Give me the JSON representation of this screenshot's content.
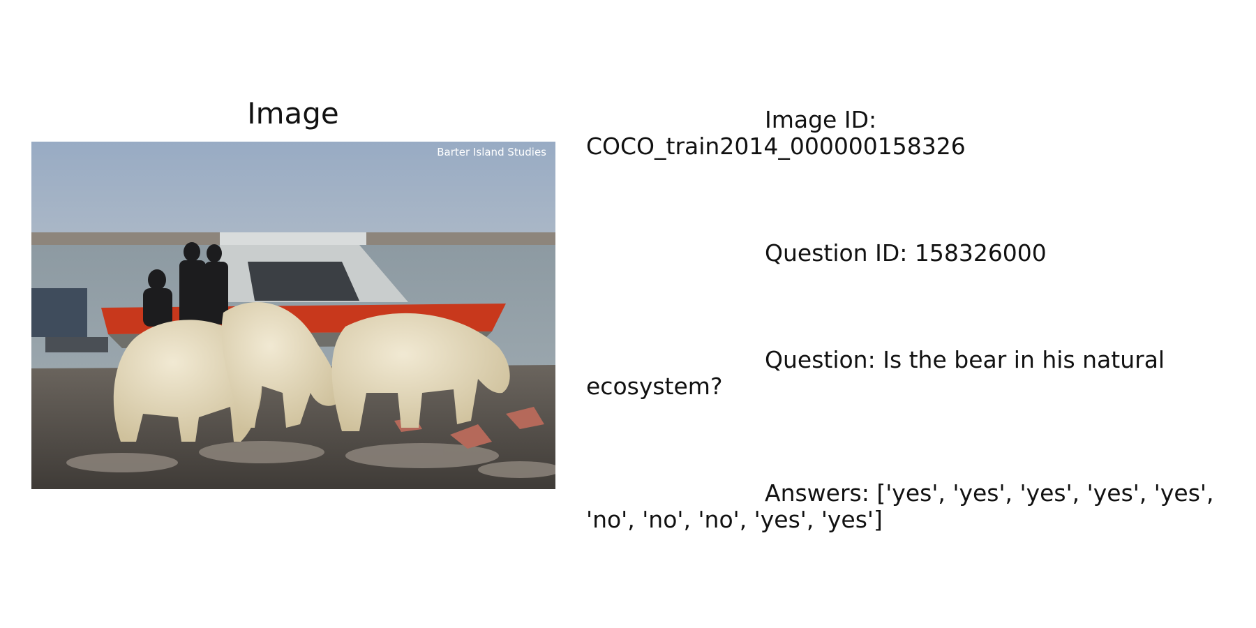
{
  "panel": {
    "image_title": "Image",
    "photo": {
      "subject": "three polar bears feeding on a rocky shore with a boat and people behind",
      "watermark": "Barter Island Studies"
    }
  },
  "info": {
    "image_id": "Image ID: COCO_train2014_000000158326",
    "question_id": "Question ID: 158326000",
    "question": "Question: Is the bear in his natural ecosystem?",
    "answers": "Answers: ['yes', 'yes', 'yes', 'yes', 'yes', 'no', 'no', 'no', 'yes', 'yes']"
  },
  "colors": {
    "sky": "#9fb2c6",
    "water": "#8f9ea6",
    "boat_stripe": "#c8381c",
    "bear_fur": "#e6dcc0",
    "ground": "#5b5650"
  }
}
